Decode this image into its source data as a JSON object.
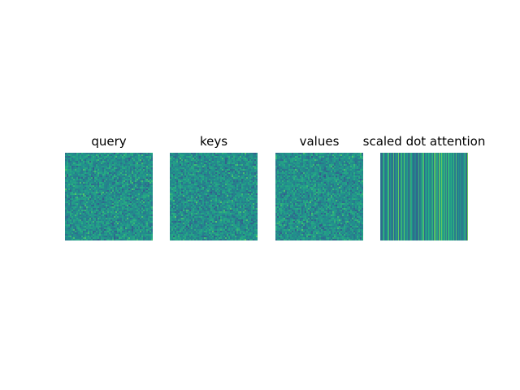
{
  "chart_data": [
    {
      "type": "heatmap",
      "title": "query",
      "pattern": "random-noise",
      "colormap": "viridis",
      "axes_visible": false
    },
    {
      "type": "heatmap",
      "title": "keys",
      "pattern": "random-noise",
      "colormap": "viridis",
      "axes_visible": false
    },
    {
      "type": "heatmap",
      "title": "values",
      "pattern": "random-noise",
      "colormap": "viridis",
      "axes_visible": false
    },
    {
      "type": "heatmap",
      "title": "scaled dot attention",
      "pattern": "column-stripes",
      "colormap": "viridis",
      "axes_visible": false
    }
  ],
  "colors": {
    "background": "#ffffff",
    "viridis_low": "#440154",
    "viridis_mid": "#21918c",
    "viridis_high": "#5ec962"
  }
}
